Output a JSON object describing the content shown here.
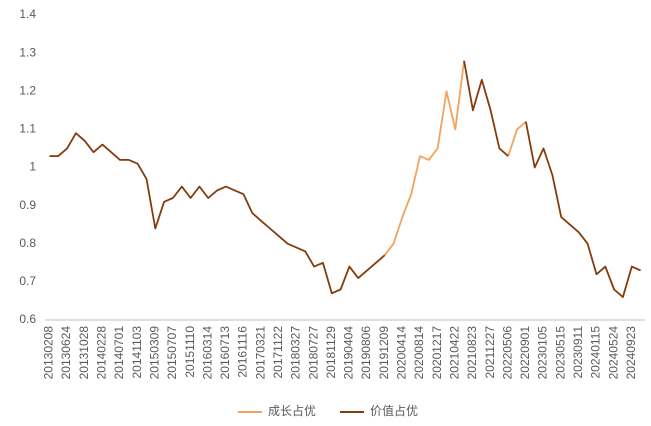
{
  "chart_data": {
    "type": "line",
    "categories": [
      "20130208",
      null,
      "20130624",
      null,
      "20131028",
      null,
      "20140228",
      null,
      "20140701",
      null,
      "20141103",
      null,
      "20150309",
      null,
      "20150707",
      null,
      "20151110",
      null,
      "20160314",
      null,
      "20160713",
      null,
      "20161116",
      null,
      "20170321",
      null,
      "20171122",
      null,
      "20180327",
      null,
      "20180727",
      null,
      "20181129",
      null,
      "20190404",
      null,
      "20190806",
      null,
      "20191209",
      null,
      "20200414",
      null,
      "20200814",
      null,
      "20201217",
      null,
      "20210422",
      null,
      "20210823",
      null,
      "20211227",
      null,
      "20220506",
      null,
      "20220901",
      null,
      "20230105",
      null,
      "20230515",
      null,
      "20230911",
      null,
      "20240115",
      null,
      "20240524",
      null,
      "20240923",
      null
    ],
    "series": [
      {
        "name": "成长占优",
        "color": "#f4a15d",
        "values": [
          null,
          null,
          null,
          null,
          null,
          null,
          null,
          null,
          null,
          null,
          null,
          null,
          null,
          null,
          null,
          null,
          null,
          null,
          null,
          null,
          null,
          null,
          null,
          null,
          null,
          null,
          null,
          null,
          null,
          null,
          null,
          null,
          null,
          null,
          null,
          null,
          null,
          null,
          0.77,
          0.8,
          0.87,
          0.93,
          1.03,
          1.02,
          1.05,
          1.2,
          1.1,
          1.28,
          null,
          null,
          null,
          null,
          1.03,
          1.1,
          1.12,
          null,
          null,
          null,
          null,
          null,
          null,
          null,
          null,
          null,
          null,
          null,
          null,
          null
        ]
      },
      {
        "name": "价值占优",
        "color": "#843c0c",
        "values": [
          1.03,
          1.03,
          1.05,
          1.09,
          1.07,
          1.04,
          1.06,
          1.04,
          1.02,
          1.02,
          1.01,
          0.97,
          0.84,
          0.91,
          0.92,
          0.95,
          0.92,
          0.95,
          0.92,
          0.94,
          0.95,
          0.94,
          0.93,
          0.88,
          0.86,
          0.84,
          0.82,
          0.8,
          0.79,
          0.78,
          0.74,
          0.75,
          0.67,
          0.68,
          0.74,
          0.71,
          0.73,
          0.75,
          0.77,
          null,
          null,
          null,
          null,
          null,
          null,
          null,
          null,
          1.28,
          1.15,
          1.23,
          1.15,
          1.05,
          1.03,
          null,
          1.12,
          1.0,
          1.05,
          0.98,
          0.87,
          0.85,
          0.83,
          0.8,
          0.72,
          0.74,
          0.68,
          0.66,
          0.74,
          0.73
        ]
      }
    ],
    "ylim": [
      0.6,
      1.4
    ],
    "yticks": [
      0.6,
      0.7,
      0.8,
      0.9,
      1,
      1.1,
      1.2,
      1.3,
      1.4
    ],
    "grid": false,
    "legend": "bottom"
  }
}
